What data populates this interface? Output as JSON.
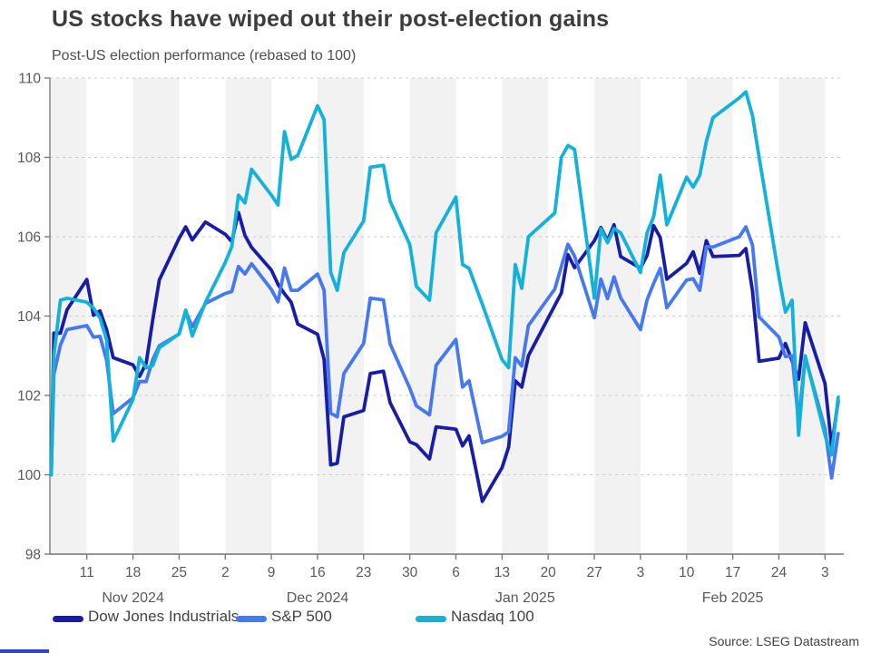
{
  "header": {
    "title": "US stocks have wiped out their post-election gains",
    "subtitle": "Post-US election performance (rebased to 100)"
  },
  "footer": {
    "source": "Source: LSEG Datastream"
  },
  "colors": {
    "dow": "#191da6",
    "sp500": "#4678f0",
    "nasdaq": "#13b2d8",
    "band": "#f2f2f2",
    "grid": "#cbcbcb",
    "axis": "#737373",
    "tick_text": "#595959",
    "title_text": "#3c3c3c",
    "accent_bar": "#2c46cc"
  },
  "chart_data": {
    "type": "line",
    "title": "US stocks have wiped out their post-election gains",
    "subtitle": "Post-US election performance (rebased to 100)",
    "ylim": [
      98,
      110
    ],
    "y_ticks": [
      98,
      100,
      102,
      104,
      106,
      108,
      110
    ],
    "grid": "horizontal-dashed",
    "legend_position": "bottom",
    "band_note": "alternating weekly gray shading between Monday ticks",
    "x_axis": {
      "tick_labels": [
        "11",
        "18",
        "25",
        "2",
        "9",
        "16",
        "23",
        "30",
        "6",
        "13",
        "20",
        "27",
        "3",
        "10",
        "17",
        "24",
        "3"
      ],
      "tick_offsets": [
        0,
        7,
        14,
        21,
        28,
        35,
        42,
        49,
        56,
        63,
        70,
        77,
        84,
        91,
        98,
        105,
        112
      ],
      "month_labels": [
        {
          "text": "Nov 2024",
          "offset": 7
        },
        {
          "text": "Dec 2024",
          "offset": 35
        },
        {
          "text": "Jan 2025",
          "offset": 66.5
        },
        {
          "text": "Feb 2025",
          "offset": 98
        }
      ]
    },
    "dates": [
      "Nov 5",
      "Nov 6",
      "Nov 7",
      "Nov 8",
      "Nov 11",
      "Nov 12",
      "Nov 13",
      "Nov 14",
      "Nov 15",
      "Nov 18",
      "Nov 19",
      "Nov 20",
      "Nov 21",
      "Nov 22",
      "Nov 25",
      "Nov 26",
      "Nov 27",
      "Nov 29",
      "Dec 2",
      "Dec 3",
      "Dec 4",
      "Dec 5",
      "Dec 6",
      "Dec 9",
      "Dec 10",
      "Dec 11",
      "Dec 12",
      "Dec 13",
      "Dec 16",
      "Dec 17",
      "Dec 18",
      "Dec 19",
      "Dec 20",
      "Dec 23",
      "Dec 24",
      "Dec 26",
      "Dec 27",
      "Dec 30",
      "Dec 31",
      "Jan 2",
      "Jan 3",
      "Jan 6",
      "Jan 7",
      "Jan 8",
      "Jan 10",
      "Jan 13",
      "Jan 14",
      "Jan 15",
      "Jan 16",
      "Jan 17",
      "Jan 21",
      "Jan 22",
      "Jan 23",
      "Jan 24",
      "Jan 27",
      "Jan 28",
      "Jan 29",
      "Jan 30",
      "Jan 31",
      "Feb 3",
      "Feb 4",
      "Feb 5",
      "Feb 6",
      "Feb 7",
      "Feb 10",
      "Feb 11",
      "Feb 12",
      "Feb 13",
      "Feb 14",
      "Feb 18",
      "Feb 19",
      "Feb 20",
      "Feb 21",
      "Feb 24",
      "Feb 25",
      "Feb 26",
      "Feb 27",
      "Feb 28",
      "Mar 3",
      "Mar 4",
      "Mar 5"
    ],
    "day_offsets": [
      -6,
      -5,
      -4,
      -3,
      0,
      1,
      2,
      3,
      4,
      7,
      8,
      9,
      10,
      11,
      14,
      15,
      16,
      18,
      21,
      22,
      23,
      24,
      25,
      28,
      29,
      30,
      31,
      32,
      35,
      36,
      37,
      38,
      39,
      42,
      43,
      45,
      46,
      49,
      50,
      52,
      53,
      56,
      57,
      58,
      60,
      63,
      64,
      65,
      66,
      67,
      71,
      72,
      73,
      74,
      77,
      78,
      79,
      80,
      81,
      84,
      85,
      86,
      87,
      88,
      91,
      92,
      93,
      94,
      95,
      99,
      100,
      101,
      102,
      105,
      106,
      107,
      108,
      109,
      112,
      113,
      114
    ],
    "series": [
      {
        "name": "Dow Jones Industrials",
        "color_key": "dow",
        "values": [
          100,
          103.57,
          103.57,
          104.16,
          104.92,
          104.02,
          104.13,
          103.66,
          102.95,
          102.77,
          102.48,
          102.81,
          103.9,
          104.91,
          105.96,
          106.25,
          105.92,
          106.37,
          106.06,
          105.88,
          106.61,
          106.03,
          105.73,
          105.16,
          104.8,
          104.56,
          104.35,
          103.8,
          103.54,
          102.91,
          100.25,
          100.29,
          101.46,
          101.62,
          102.55,
          102.61,
          101.82,
          100.83,
          100.76,
          100.4,
          101.21,
          101.15,
          100.73,
          100.98,
          99.33,
          100.18,
          100.7,
          102.37,
          102.21,
          103.0,
          104.27,
          104.58,
          105.55,
          105.22,
          105.9,
          106.23,
          105.9,
          106.3,
          105.5,
          105.21,
          105.53,
          106.28,
          105.98,
          104.93,
          105.33,
          105.62,
          105.08,
          105.9,
          105.5,
          105.53,
          105.7,
          104.63,
          102.86,
          102.94,
          103.31,
          102.87,
          102.41,
          103.83,
          102.3,
          100.71,
          101.86
        ]
      },
      {
        "name": "S&P 500",
        "color_key": "sp500",
        "values": [
          100,
          102.53,
          103.27,
          103.66,
          103.76,
          103.47,
          103.49,
          102.89,
          101.54,
          101.94,
          102.35,
          102.35,
          102.9,
          103.25,
          103.55,
          104.12,
          103.73,
          104.32,
          104.57,
          104.62,
          105.25,
          105.06,
          105.32,
          104.67,
          104.36,
          105.21,
          104.65,
          104.65,
          105.06,
          104.65,
          101.55,
          101.46,
          102.55,
          103.31,
          104.45,
          104.41,
          103.3,
          102.18,
          101.74,
          101.51,
          102.76,
          103.41,
          102.21,
          102.37,
          100.81,
          100.97,
          101.08,
          102.95,
          102.74,
          103.76,
          104.68,
          105.25,
          105.81,
          105.51,
          103.96,
          104.93,
          104.44,
          104.99,
          104.46,
          103.66,
          104.41,
          104.82,
          105.2,
          104.21,
          104.91,
          104.94,
          104.65,
          105.75,
          105.74,
          106.0,
          106.25,
          105.79,
          103.98,
          103.47,
          102.98,
          103.0,
          101.36,
          102.97,
          101.16,
          99.92,
          101.04
        ]
      },
      {
        "name": "Nasdaq 100",
        "color_key": "nasdaq",
        "values": [
          100,
          103.0,
          104.4,
          104.45,
          104.35,
          104.2,
          103.95,
          103.4,
          100.85,
          101.9,
          102.95,
          102.7,
          102.75,
          103.2,
          103.55,
          104.15,
          103.5,
          104.35,
          105.35,
          105.75,
          107.05,
          106.85,
          107.7,
          107.05,
          106.8,
          108.65,
          107.95,
          108.05,
          109.3,
          108.95,
          105.1,
          104.65,
          105.6,
          106.4,
          107.75,
          107.8,
          106.9,
          105.8,
          104.75,
          104.4,
          106.1,
          107.0,
          105.3,
          105.2,
          104.3,
          102.9,
          102.7,
          105.3,
          104.7,
          106.0,
          106.6,
          108.0,
          108.3,
          108.2,
          104.45,
          106.2,
          105.85,
          106.2,
          106.1,
          105.1,
          106.1,
          106.5,
          107.55,
          106.3,
          107.5,
          107.25,
          107.55,
          108.4,
          109.0,
          109.5,
          109.65,
          109.05,
          108.0,
          105.0,
          104.1,
          104.4,
          101.0,
          103.0,
          101.0,
          100.5,
          101.95
        ]
      }
    ]
  }
}
